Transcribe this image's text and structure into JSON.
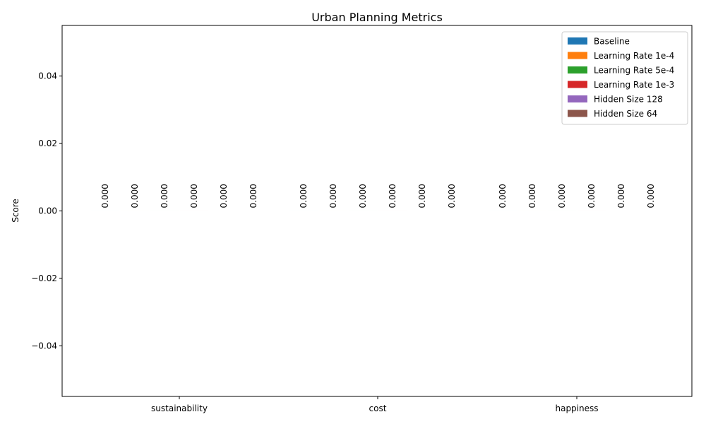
{
  "chart_data": {
    "type": "bar",
    "title": "Urban Planning Metrics",
    "xlabel": "",
    "ylabel": "Score",
    "categories": [
      "sustainability",
      "cost",
      "happiness"
    ],
    "ylim": [
      -0.055,
      0.055
    ],
    "yticks": [
      -0.04,
      -0.02,
      0.0,
      0.02,
      0.04
    ],
    "ytick_labels": [
      "−0.04",
      "−0.02",
      "0.00",
      "0.02",
      "0.04"
    ],
    "grid": false,
    "legend_position": "top-right",
    "series": [
      {
        "name": "Baseline",
        "color": "#1f77b4",
        "values": [
          0,
          0,
          0
        ],
        "labels": [
          "0.000",
          "0.000",
          "0.000"
        ]
      },
      {
        "name": "Learning Rate 1e-4",
        "color": "#ff7f0e",
        "values": [
          0,
          0,
          0
        ],
        "labels": [
          "0.000",
          "0.000",
          "0.000"
        ]
      },
      {
        "name": "Learning Rate 5e-4",
        "color": "#2ca02c",
        "values": [
          0,
          0,
          0
        ],
        "labels": [
          "0.000",
          "0.000",
          "0.000"
        ]
      },
      {
        "name": "Learning Rate 1e-3",
        "color": "#d62728",
        "values": [
          0,
          0,
          0
        ],
        "labels": [
          "0.000",
          "0.000",
          "0.000"
        ]
      },
      {
        "name": "Hidden Size 128",
        "color": "#9467bd",
        "values": [
          0,
          0,
          0
        ],
        "labels": [
          "0.000",
          "0.000",
          "0.000"
        ]
      },
      {
        "name": "Hidden Size 64",
        "color": "#8c564b",
        "values": [
          0,
          0,
          0
        ],
        "labels": [
          "0.000",
          "0.000",
          "0.000"
        ]
      }
    ]
  }
}
